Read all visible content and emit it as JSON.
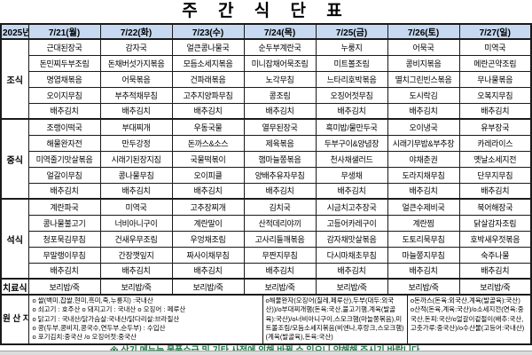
{
  "title": "주 간 식 단 표",
  "colors": {
    "header_bg": "#c6d9f1",
    "note_text": "#1b7742"
  },
  "header": {
    "year": "2025년",
    "days": [
      "7/21(월)",
      "7/22(화)",
      "7/23(수)",
      "7/24(목)",
      "7/25(금)",
      "7/26(토)",
      "7/27(일)"
    ]
  },
  "sections": [
    {
      "label": "조식",
      "rows": [
        [
          "근대된장국",
          "감자국",
          "얼큰콩나물국",
          "순두부계란국",
          "누룽지",
          "어묵국",
          "미역국"
        ],
        [
          "돈민찌두부조림",
          "돈채버섯가지볶음",
          "모듬소세지볶음",
          "미니잡채어묵조림",
          "미트볼조림",
          "콩비지볶음",
          "메란곤약조림"
        ],
        [
          "명엽채볶음",
          "어묵볶음",
          "건파래볶음",
          "노각무침",
          "느타리호박볶음",
          "멸치그린빈스볶음",
          "무나물볶음"
        ],
        [
          "오이지무침",
          "부추적채무침",
          "고추지양파무침",
          "콩조림",
          "오징어젓무침",
          "도시락김",
          "오복지무침"
        ],
        [
          "배추김치",
          "배추김치",
          "배추김치",
          "배추김치",
          "배추김치",
          "배추김치",
          "배추김치"
        ]
      ]
    },
    {
      "label": "중식",
      "rows": [
        [
          "조랭이떡국",
          "부대찌개",
          "우동국물",
          "열무된장국",
          "흑미밥/물만두국",
          "오이냉국",
          "유부장국"
        ],
        [
          "해물완자전",
          "만두강정",
          "돈까스&소스",
          "제육볶음",
          "두부구이&양념장",
          "시래기무밥&부추장",
          "카레라이스"
        ],
        [
          "미역줄기맛살볶음",
          "시래기된장지짐",
          "국물떡볶이",
          "햄마늘쫑볶음",
          "천사채샐러드",
          "야채춘권",
          "옛날소세지전"
        ],
        [
          "얼갈이무침",
          "콩나물무침",
          "오이피클",
          "양배추유자무침",
          "무생채",
          "도라지채무침",
          "단무지무침"
        ],
        [
          "배추김치",
          "배추김치",
          "배추김치",
          "배추김치",
          "배추김치",
          "배추김치",
          "배추김치"
        ]
      ]
    },
    {
      "label": "석식",
      "rows": [
        [
          "계란파국",
          "미역국",
          "고추장찌개",
          "김치국",
          "시금치고추장국",
          "얼큰수제비국",
          "북어해장국"
        ],
        [
          "콩나물불고기",
          "너비아니구이",
          "계란말이",
          "산적데리야끼",
          "고등어카레구이",
          "계란찜",
          "닭살감자조림"
        ],
        [
          "청포묵김무침",
          "건새우무조림",
          "우엉채조림",
          "고사리들깨볶음",
          "감자채맛살볶음",
          "도토리묵무침",
          "호박새우젓볶음"
        ],
        [
          "무말랭이무침",
          "간장깻잎지",
          "짜사이채무침",
          "무짠지무침",
          "다시마채초무침",
          "마늘쫑지무침",
          "숙주나물"
        ],
        [
          "배추김치",
          "배추김치",
          "배추김치",
          "배추김치",
          "배추김치",
          "배추김치",
          "배추김치"
        ]
      ]
    },
    {
      "label": "치료식",
      "rows": [
        [
          "보리밥/죽",
          "보리밥/죽",
          "보리밥/죽",
          "보리밥/죽",
          "보리밥/죽",
          "보리밥/죽",
          "보리밥/죽"
        ]
      ]
    }
  ],
  "origin": {
    "label": "원\n산\n지\n표\n시",
    "blocks": [
      "o 쌀(백미,찹쌀,현미,흑미,죽,누룽지) :국내산\no 쇠고기 : 호주산  o 돼지고기 : 국내산 o 오징어 : 페루산\no 닭고기 : 국내산/닭가슴살:국내산/닭다리살:브라질산\no 콩(두부,콩비지,콩국수,연두부,순두부) : 수입산\no 포기김치:중국산 /o 오징어젓:중국산",
      "o해물완자(오징어(칠레,페루산),두부(대두:외국산))/o부대찌개햄(돈육:국산,불고기햄,계육(발골육):국산)/o너비아니구이,스모크햄(마늘쫑볶음),미트볼조림/모듬소세지볶음(비엔나,후랑크,스모크햄)(계육(발골육),돈육:국산)",
      "o돈까스(돈육:외국산,계육(발골육):국산)\no산적(돈육,계육:국산)/o소세지전(연육:중국산,돈피:국산/o얼갈이겉절이(배추:국산,고춧가루:중국산)/o수산물(고등어:국내산)"
    ]
  },
  "note": "※ 상기 메뉴는 물품수급 및 기타 사정에 의해 바뀔 수 있으니 양해해 주시기 바랍니다."
}
